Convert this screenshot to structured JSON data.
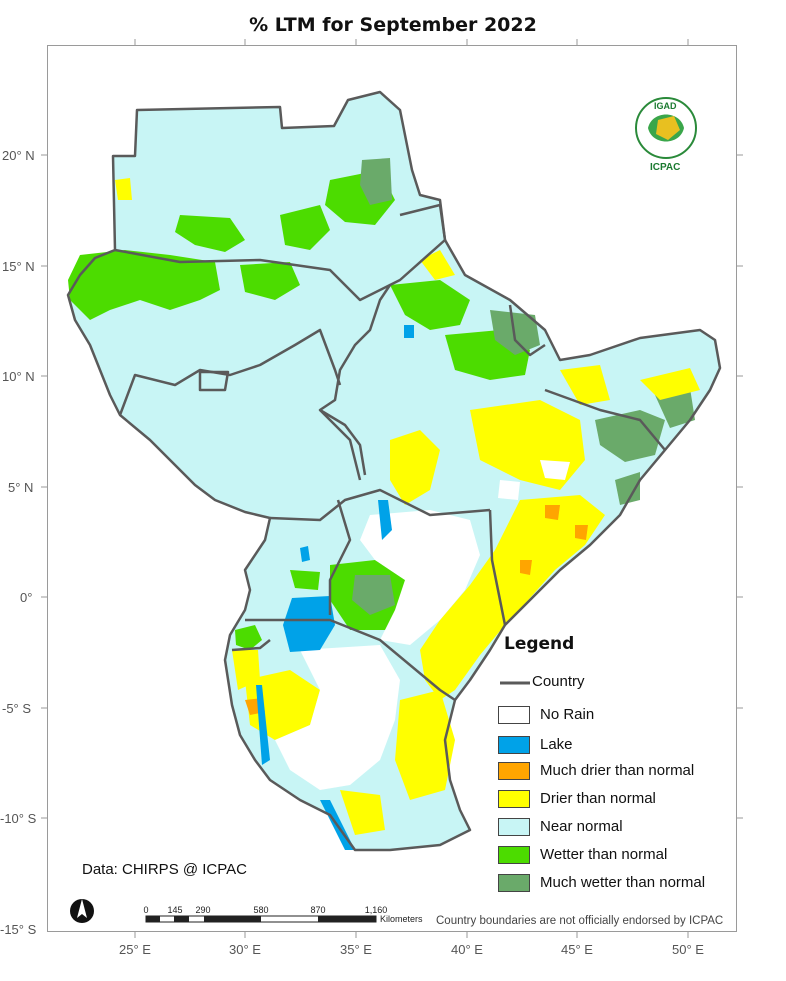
{
  "title": "% LTM  for   September 2022",
  "lat_labels": [
    "20° N",
    "15° N",
    "10° N",
    "5° N",
    "0°",
    "-5° S",
    "-10° S",
    "-15° S"
  ],
  "lon_labels": [
    "25° E",
    "30° E",
    "35° E",
    "40° E",
    "45° E",
    "50° E"
  ],
  "legend": {
    "title": "Legend",
    "country_label": "Country",
    "items": [
      {
        "label": "No Rain",
        "color": "#ffffff"
      },
      {
        "label": "Lake",
        "color": "#00a2e8"
      },
      {
        "label": "Much drier than normal",
        "color": "#ffa500"
      },
      {
        "label": "Drier than normal",
        "color": "#ffff00"
      },
      {
        "label": "Near normal",
        "color": "#c8f5f5"
      },
      {
        "label": "Wetter than normal",
        "color": "#4cdc00"
      },
      {
        "label": "Much wetter than normal",
        "color": "#6aaa6a"
      }
    ]
  },
  "credit": "Data: CHIRPS @ ICPAC",
  "disclaimer": "Country boundaries are not officially endorsed by ICPAC",
  "scale": {
    "ticks": [
      "0",
      "145",
      "290",
      "580",
      "870",
      "1,160"
    ],
    "unit": "Kilometers"
  },
  "logo": {
    "top_text": "IGAD",
    "bottom_text": "ICPAC"
  },
  "north_arrow_label": "N"
}
